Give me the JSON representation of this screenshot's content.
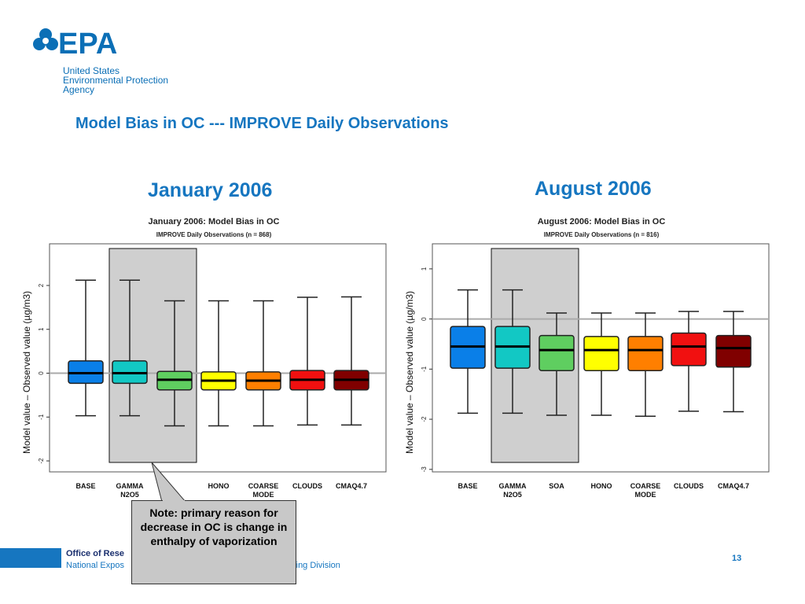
{
  "header": {
    "logo_text": "EPA",
    "org_lines": [
      "United States",
      "Environmental Protection",
      "Agency"
    ]
  },
  "slide_title": "Model Bias in OC --- IMPROVE Daily Observations",
  "footer": {
    "office": "Office of Rese",
    "lab": "National Expos",
    "division": "ric Modeling Division",
    "page_number": "13"
  },
  "note": "Note: primary reason for decrease in OC is change in enthalpy of vaporization",
  "colors": [
    "#0a7fe8",
    "#12c8c4",
    "#5fce60",
    "#ffff00",
    "#ff7f00",
    "#f11010",
    "#800000"
  ],
  "chart_data": [
    {
      "type": "boxplot",
      "panel_title": "January 2006",
      "title": "January  2006: Model Bias in OC",
      "subtitle": "IMPROVE Daily Observations (n = 868)",
      "ylabel": "Model value – Observed value (µg/m3)",
      "ylim": [
        -2.25,
        2.95
      ],
      "yticks": [
        -2,
        -1,
        0,
        1,
        2
      ],
      "reference_line": 0,
      "highlight_index": 1,
      "categories": [
        "BASE",
        "GAMMA\nN2O5",
        "",
        "HONO",
        "COARSE\nMODE",
        "CLOUDS",
        "CMAQ4.7"
      ],
      "boxes": [
        {
          "min": -0.97,
          "q1": -0.23,
          "median": 0.0,
          "q3": 0.28,
          "max": 2.12
        },
        {
          "min": -0.97,
          "q1": -0.23,
          "median": 0.0,
          "q3": 0.28,
          "max": 2.12
        },
        {
          "min": -1.2,
          "q1": -0.38,
          "median": -0.15,
          "q3": 0.04,
          "max": 1.65
        },
        {
          "min": -1.2,
          "q1": -0.38,
          "median": -0.17,
          "q3": 0.03,
          "max": 1.65
        },
        {
          "min": -1.2,
          "q1": -0.38,
          "median": -0.17,
          "q3": 0.03,
          "max": 1.65
        },
        {
          "min": -1.18,
          "q1": -0.38,
          "median": -0.15,
          "q3": 0.06,
          "max": 1.73
        },
        {
          "min": -1.18,
          "q1": -0.38,
          "median": -0.15,
          "q3": 0.06,
          "max": 1.74
        }
      ]
    },
    {
      "type": "boxplot",
      "panel_title": "August 2006",
      "title": "August  2006: Model Bias in OC",
      "subtitle": "IMPROVE Daily Observations (n = 816)",
      "ylabel": "Model value – Observed value (µg/m3)",
      "ylim": [
        -3.05,
        1.5
      ],
      "yticks": [
        -3,
        -2,
        -1,
        0,
        1
      ],
      "reference_line": 0,
      "highlight_index": 1,
      "categories": [
        "BASE",
        "GAMMA\nN2O5",
        "SOA",
        "HONO",
        "COARSE\nMODE",
        "CLOUDS",
        "CMAQ4.7"
      ],
      "boxes": [
        {
          "min": -1.88,
          "q1": -0.98,
          "median": -0.55,
          "q3": -0.15,
          "max": 0.58
        },
        {
          "min": -1.88,
          "q1": -0.98,
          "median": -0.55,
          "q3": -0.15,
          "max": 0.58
        },
        {
          "min": -1.92,
          "q1": -1.03,
          "median": -0.62,
          "q3": -0.33,
          "max": 0.12
        },
        {
          "min": -1.92,
          "q1": -1.03,
          "median": -0.62,
          "q3": -0.35,
          "max": 0.12
        },
        {
          "min": -1.94,
          "q1": -1.03,
          "median": -0.62,
          "q3": -0.35,
          "max": 0.12
        },
        {
          "min": -1.84,
          "q1": -0.93,
          "median": -0.55,
          "q3": -0.28,
          "max": 0.15
        },
        {
          "min": -1.85,
          "q1": -0.96,
          "median": -0.58,
          "q3": -0.33,
          "max": 0.15
        }
      ]
    }
  ]
}
